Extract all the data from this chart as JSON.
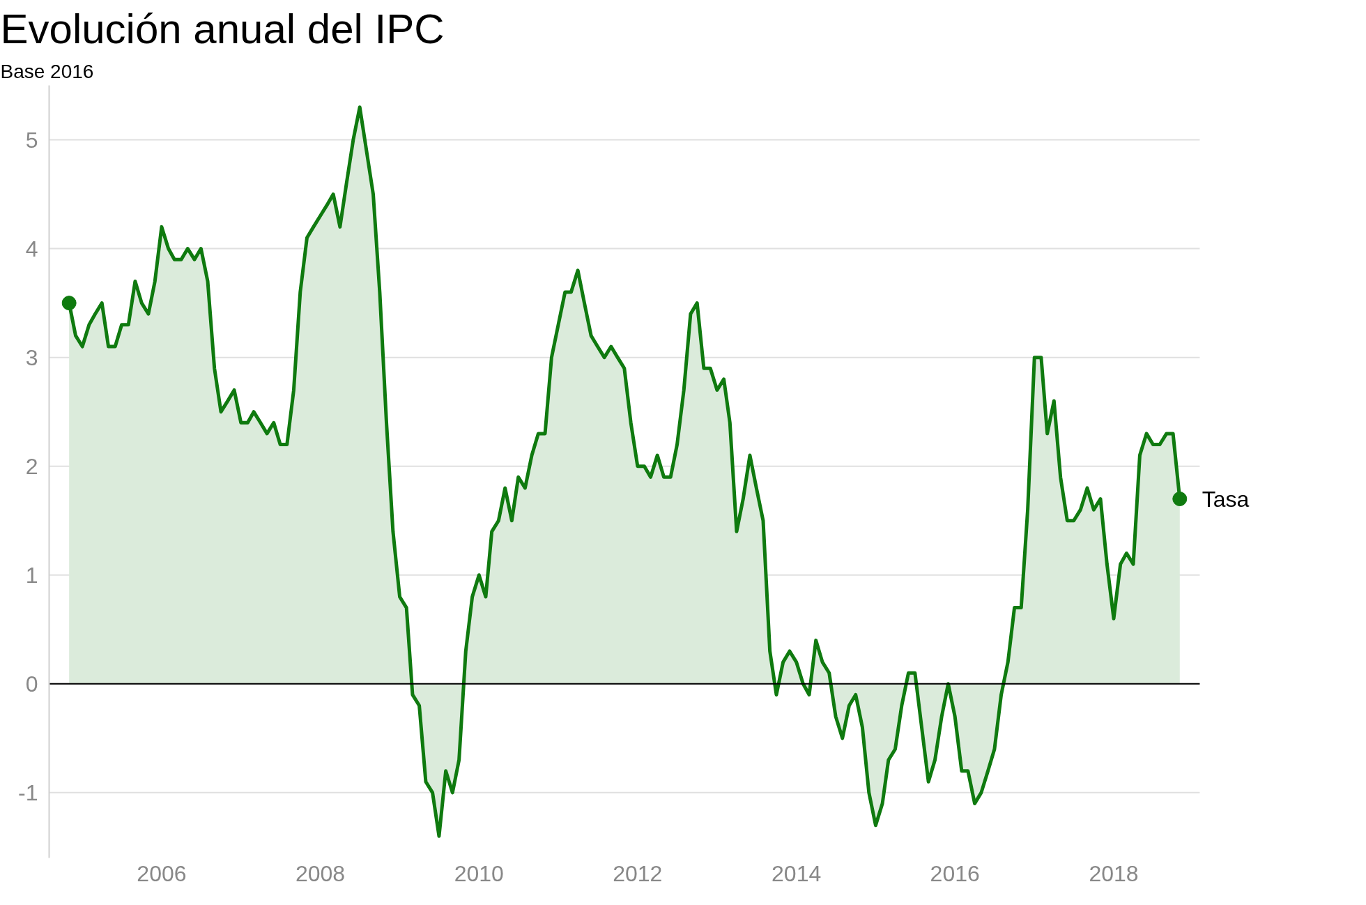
{
  "chart_data": {
    "type": "area",
    "title": "Evolución anual del IPC",
    "subtitle": "Base 2016",
    "xlim": [
      "2004-08",
      "2019-02"
    ],
    "xticks": [
      {
        "value": "2006-01",
        "label": "2006"
      },
      {
        "value": "2008-01",
        "label": "2008"
      },
      {
        "value": "2010-01",
        "label": "2010"
      },
      {
        "value": "2012-01",
        "label": "2012"
      },
      {
        "value": "2014-01",
        "label": "2014"
      },
      {
        "value": "2016-01",
        "label": "2016"
      },
      {
        "value": "2018-01",
        "label": "2018"
      }
    ],
    "ylim": [
      -1.6,
      5.5
    ],
    "yticks": [
      -1,
      0,
      1,
      2,
      3,
      4,
      5
    ],
    "grid": "y",
    "ref_lines": [
      {
        "axis": "y",
        "value": 0,
        "color": "#000000"
      }
    ],
    "series": [
      {
        "name": "Tasa",
        "color": "#0f7a0f",
        "x": [
          "2004-11",
          "2004-12",
          "2005-01",
          "2005-02",
          "2005-03",
          "2005-04",
          "2005-05",
          "2005-06",
          "2005-07",
          "2005-08",
          "2005-09",
          "2005-10",
          "2005-11",
          "2005-12",
          "2006-01",
          "2006-02",
          "2006-03",
          "2006-04",
          "2006-05",
          "2006-06",
          "2006-07",
          "2006-08",
          "2006-09",
          "2006-10",
          "2006-11",
          "2006-12",
          "2007-01",
          "2007-02",
          "2007-03",
          "2007-04",
          "2007-05",
          "2007-06",
          "2007-07",
          "2007-08",
          "2007-09",
          "2007-10",
          "2007-11",
          "2007-12",
          "2008-01",
          "2008-02",
          "2008-03",
          "2008-04",
          "2008-05",
          "2008-06",
          "2008-07",
          "2008-08",
          "2008-09",
          "2008-10",
          "2008-11",
          "2008-12",
          "2009-01",
          "2009-02",
          "2009-03",
          "2009-04",
          "2009-05",
          "2009-06",
          "2009-07",
          "2009-08",
          "2009-09",
          "2009-10",
          "2009-11",
          "2009-12",
          "2010-01",
          "2010-02",
          "2010-03",
          "2010-04",
          "2010-05",
          "2010-06",
          "2010-07",
          "2010-08",
          "2010-09",
          "2010-10",
          "2010-11",
          "2010-12",
          "2011-01",
          "2011-02",
          "2011-03",
          "2011-04",
          "2011-05",
          "2011-06",
          "2011-07",
          "2011-08",
          "2011-09",
          "2011-10",
          "2011-11",
          "2011-12",
          "2012-01",
          "2012-02",
          "2012-03",
          "2012-04",
          "2012-05",
          "2012-06",
          "2012-07",
          "2012-08",
          "2012-09",
          "2012-10",
          "2012-11",
          "2012-12",
          "2013-01",
          "2013-02",
          "2013-03",
          "2013-04",
          "2013-05",
          "2013-06",
          "2013-07",
          "2013-08",
          "2013-09",
          "2013-10",
          "2013-11",
          "2013-12",
          "2014-01",
          "2014-02",
          "2014-03",
          "2014-04",
          "2014-05",
          "2014-06",
          "2014-07",
          "2014-08",
          "2014-09",
          "2014-10",
          "2014-11",
          "2014-12",
          "2015-01",
          "2015-02",
          "2015-03",
          "2015-04",
          "2015-05",
          "2015-06",
          "2015-07",
          "2015-08",
          "2015-09",
          "2015-10",
          "2015-11",
          "2015-12",
          "2016-01",
          "2016-02",
          "2016-03",
          "2016-04",
          "2016-05",
          "2016-06",
          "2016-07",
          "2016-08",
          "2016-09",
          "2016-10",
          "2016-11",
          "2016-12",
          "2017-01",
          "2017-02",
          "2017-03",
          "2017-04",
          "2017-05",
          "2017-06",
          "2017-07",
          "2017-08",
          "2017-09",
          "2017-10",
          "2017-11",
          "2017-12",
          "2018-01",
          "2018-02",
          "2018-03",
          "2018-04",
          "2018-05",
          "2018-06",
          "2018-07",
          "2018-08",
          "2018-09",
          "2018-10",
          "2018-11"
        ],
        "values": [
          3.5,
          3.2,
          3.1,
          3.3,
          3.4,
          3.5,
          3.1,
          3.1,
          3.3,
          3.3,
          3.7,
          3.5,
          3.4,
          3.7,
          4.2,
          4.0,
          3.9,
          3.9,
          4.0,
          3.9,
          4.0,
          3.7,
          2.9,
          2.5,
          2.6,
          2.7,
          2.4,
          2.4,
          2.5,
          2.4,
          2.3,
          2.4,
          2.2,
          2.2,
          2.7,
          3.6,
          4.1,
          4.2,
          4.3,
          4.4,
          4.5,
          4.2,
          4.6,
          5.0,
          5.3,
          4.9,
          4.5,
          3.6,
          2.4,
          1.4,
          0.8,
          0.7,
          -0.1,
          -0.2,
          -0.9,
          -1.0,
          -1.4,
          -0.8,
          -1.0,
          -0.7,
          0.3,
          0.8,
          1.0,
          0.8,
          1.4,
          1.5,
          1.8,
          1.5,
          1.9,
          1.8,
          2.1,
          2.3,
          2.3,
          3.0,
          3.3,
          3.6,
          3.6,
          3.8,
          3.5,
          3.2,
          3.1,
          3.0,
          3.1,
          3.0,
          2.9,
          2.4,
          2.0,
          2.0,
          1.9,
          2.1,
          1.9,
          1.9,
          2.2,
          2.7,
          3.4,
          3.5,
          2.9,
          2.9,
          2.7,
          2.8,
          2.4,
          1.4,
          1.7,
          2.1,
          1.8,
          1.5,
          0.3,
          -0.1,
          0.2,
          0.3,
          0.2,
          0.0,
          -0.1,
          0.4,
          0.2,
          0.1,
          -0.3,
          -0.5,
          -0.2,
          -0.1,
          -0.4,
          -1.0,
          -1.3,
          -1.1,
          -0.7,
          -0.6,
          -0.2,
          0.1,
          0.1,
          -0.4,
          -0.9,
          -0.7,
          -0.3,
          0.0,
          -0.3,
          -0.8,
          -0.8,
          -1.1,
          -1.0,
          -0.8,
          -0.6,
          -0.1,
          0.2,
          0.7,
          0.7,
          1.6,
          3.0,
          3.0,
          2.3,
          2.6,
          1.9,
          1.5,
          1.5,
          1.6,
          1.8,
          1.6,
          1.7,
          1.1,
          0.6,
          1.1,
          1.2,
          1.1,
          2.1,
          2.3,
          2.2,
          2.2,
          2.3,
          2.3,
          1.7
        ]
      }
    ]
  }
}
